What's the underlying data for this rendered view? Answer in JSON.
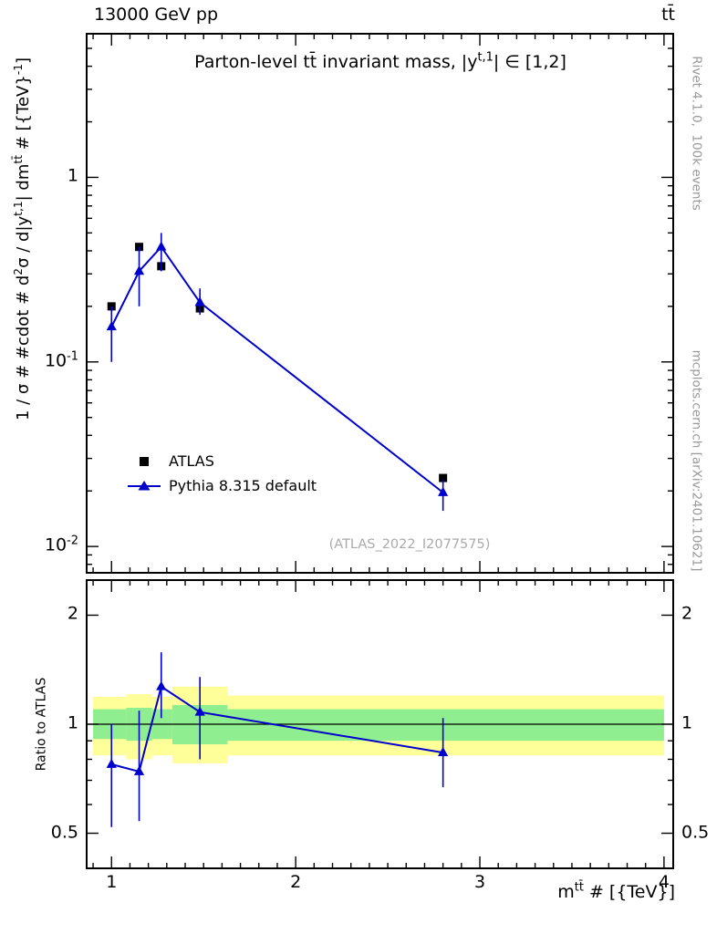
{
  "header": {
    "left": "13000 GeV pp",
    "right": "tt̄"
  },
  "side_notes": {
    "rivet": "Rivet 4.1.0,  100k events",
    "mcplots": "mcplots.cern.ch [arXiv:2401.10621]",
    "analysis": "(ATLAS_2022_I2077575)"
  },
  "chart_data": {
    "type": "line",
    "title": "Parton-level tt̄ invariant mass, |y^{t,1}| ∈ [1,2]",
    "xlabel": "m^{tt̄} # [{TeV}]",
    "ylabel_main": "1 / σ # #cdot # d^{2}σ / d|y^{t,1}| dm^{tt̄} # [{TeV}^{-1}]",
    "ylabel_ratio": "Ratio to ATLAS",
    "x_range": [
      0.865,
      4.05
    ],
    "main_y_scale": "log",
    "main_y_range": [
      0.0072,
      6.0
    ],
    "ratio_y_scale": "log",
    "ratio_y_range": [
      0.4,
      2.5
    ],
    "x_axis": {
      "ticks": [
        {
          "v": 1,
          "label": "1"
        },
        {
          "v": 2,
          "label": "2"
        },
        {
          "v": 3,
          "label": "3"
        },
        {
          "v": 4,
          "label": "4"
        }
      ]
    },
    "y_main_axis": {
      "ticks": [
        {
          "v": 1,
          "label": "1"
        },
        {
          "v": 0.1,
          "label": "10^{-1}"
        },
        {
          "v": 0.01,
          "label": "10^{-2}"
        }
      ]
    },
    "y_ratio_axis": {
      "ticks": [
        {
          "v": 2,
          "label": "2"
        },
        {
          "v": 1,
          "label": "1"
        },
        {
          "v": 0.5,
          "label": "0.5"
        }
      ]
    },
    "series": [
      {
        "name": "ATLAS",
        "marker": "square",
        "color": "#000000",
        "line": false,
        "x": [
          1.0,
          1.15,
          1.27,
          1.48,
          2.8
        ],
        "y": [
          0.2,
          0.42,
          0.33,
          0.195,
          0.0235
        ]
      },
      {
        "name": "Pythia 8.315 default",
        "marker": "triangle",
        "color": "#0000cc",
        "line": true,
        "x": [
          1.0,
          1.15,
          1.27,
          1.48,
          2.8
        ],
        "y": [
          0.155,
          0.31,
          0.42,
          0.21,
          0.0196
        ],
        "y_lo": [
          0.1,
          0.2,
          0.31,
          0.18,
          0.0156
        ],
        "y_hi": [
          0.2,
          0.42,
          0.5,
          0.25,
          0.023
        ]
      }
    ],
    "ratio": {
      "color": "#0000cc",
      "x": [
        1.0,
        1.15,
        1.27,
        1.48,
        2.8
      ],
      "y": [
        0.775,
        0.74,
        1.27,
        1.08,
        0.835
      ],
      "y_lo": [
        0.52,
        0.54,
        1.04,
        0.8,
        0.67
      ],
      "y_hi": [
        1.0,
        1.09,
        1.58,
        1.35,
        1.04
      ],
      "band_colors": {
        "outer": "#ffff99",
        "inner": "#8fee8f"
      },
      "bands": [
        {
          "x0": 0.9,
          "x1": 1.08,
          "outer": [
            0.82,
            1.19
          ],
          "inner": [
            0.91,
            1.1
          ]
        },
        {
          "x0": 1.08,
          "x1": 1.22,
          "outer": [
            0.8,
            1.21
          ],
          "inner": [
            0.9,
            1.11
          ]
        },
        {
          "x0": 1.22,
          "x1": 1.33,
          "outer": [
            0.82,
            1.19
          ],
          "inner": [
            0.91,
            1.1
          ]
        },
        {
          "x0": 1.33,
          "x1": 1.63,
          "outer": [
            0.78,
            1.27
          ],
          "inner": [
            0.88,
            1.13
          ]
        },
        {
          "x0": 1.63,
          "x1": 4.0,
          "outer": [
            0.82,
            1.2
          ],
          "inner": [
            0.9,
            1.1
          ]
        }
      ]
    }
  }
}
